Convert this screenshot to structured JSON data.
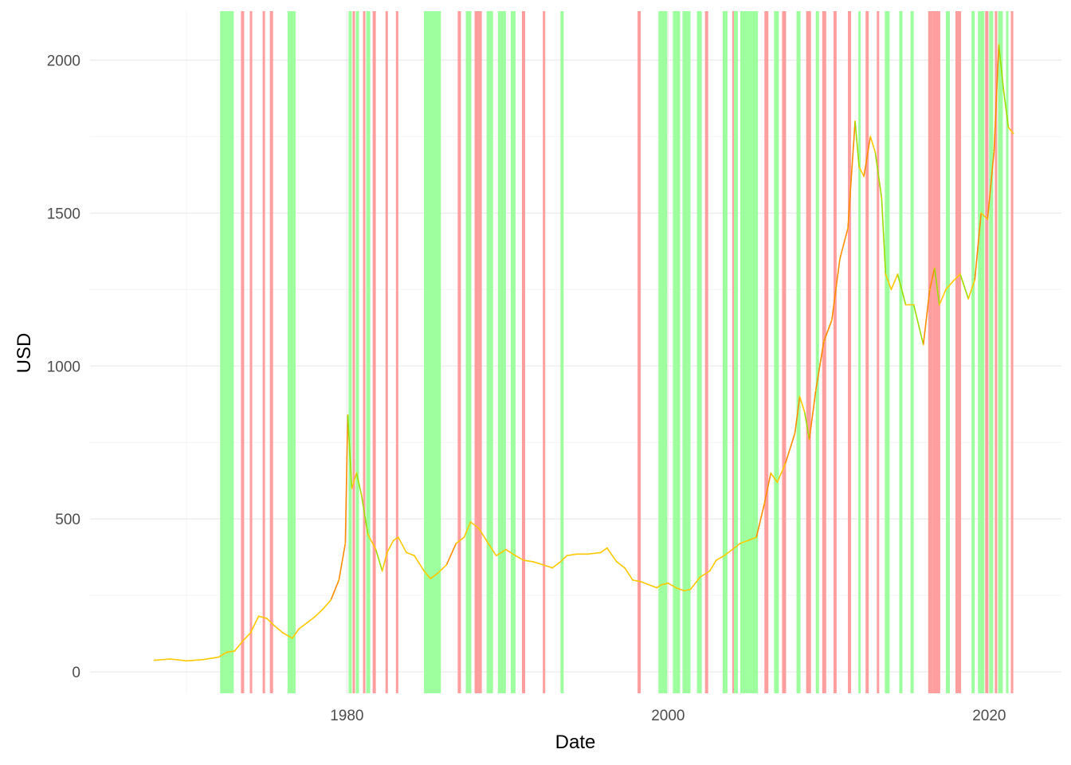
{
  "chart_data": {
    "type": "line",
    "xlabel": "Date",
    "ylabel": "USD",
    "x_ticks": [
      "1980",
      "2000",
      "2020"
    ],
    "y_ticks": [
      "0",
      "500",
      "1000",
      "1500",
      "2000"
    ],
    "xlim": [
      1964.0,
      2024.5
    ],
    "ylim": [
      -70,
      2160
    ],
    "grid": true,
    "legend": "none",
    "colors": {
      "line": "#ffc800",
      "line_falling": "#ff8c00",
      "line_rising": "#9ade00",
      "band_rising": "#99ff99",
      "band_falling": "#ff9999",
      "grid_major": "#ebebeb",
      "grid_minor": "#f4f4f4"
    },
    "series": [
      {
        "x": [
          1968.0,
          1969.0,
          1970.0,
          1971.0,
          1972.0,
          1972.5,
          1973.0,
          1973.5,
          1974.0,
          1974.5,
          1975.0,
          1975.5,
          1976.0,
          1976.6,
          1977.0,
          1977.5,
          1978.0,
          1978.5,
          1979.0,
          1979.5,
          1979.9,
          1980.05,
          1980.3,
          1980.6,
          1980.9,
          1981.3,
          1981.8,
          1982.2,
          1982.5,
          1982.9,
          1983.2,
          1983.7,
          1984.2,
          1984.8,
          1985.2,
          1985.6,
          1986.2,
          1986.8,
          1987.3,
          1987.7,
          1988.2,
          1988.8,
          1989.3,
          1989.9,
          1990.5,
          1991.0,
          1991.6,
          1992.2,
          1992.8,
          1993.3,
          1993.7,
          1994.3,
          1995.0,
          1995.8,
          1996.2,
          1996.8,
          1997.3,
          1997.8,
          1998.3,
          1998.8,
          1999.3,
          1999.6,
          2000.0,
          2000.5,
          2001.0,
          2001.4,
          2002.0,
          2002.6,
          2003.0,
          2003.5,
          2004.0,
          2004.5,
          2005.0,
          2005.5,
          2006.0,
          2006.4,
          2006.8,
          2007.3,
          2007.9,
          2008.2,
          2008.5,
          2008.8,
          2009.2,
          2009.7,
          2010.2,
          2010.7,
          2011.2,
          2011.65,
          2011.9,
          2012.2,
          2012.6,
          2012.9,
          2013.3,
          2013.55,
          2013.9,
          2014.3,
          2014.8,
          2015.3,
          2015.9,
          2016.3,
          2016.6,
          2016.9,
          2017.3,
          2017.8,
          2018.2,
          2018.7,
          2019.1,
          2019.5,
          2019.9,
          2020.3,
          2020.6,
          2020.9,
          2021.2,
          2021.5
        ],
        "values": [
          38,
          42,
          36,
          40,
          48,
          64,
          68,
          100,
          128,
          182,
          175,
          150,
          128,
          110,
          140,
          160,
          180,
          205,
          235,
          300,
          420,
          840,
          600,
          650,
          580,
          450,
          400,
          330,
          390,
          430,
          440,
          390,
          380,
          330,
          305,
          320,
          350,
          420,
          440,
          490,
          470,
          420,
          380,
          400,
          380,
          365,
          360,
          350,
          340,
          360,
          380,
          385,
          385,
          390,
          405,
          360,
          340,
          300,
          295,
          285,
          275,
          285,
          290,
          275,
          265,
          270,
          310,
          330,
          365,
          380,
          400,
          420,
          430,
          440,
          550,
          650,
          620,
          680,
          780,
          900,
          850,
          760,
          920,
          1080,
          1150,
          1350,
          1450,
          1800,
          1650,
          1620,
          1750,
          1700,
          1550,
          1300,
          1250,
          1300,
          1200,
          1200,
          1070,
          1250,
          1320,
          1200,
          1250,
          1280,
          1300,
          1220,
          1280,
          1500,
          1480,
          1700,
          2050,
          1900,
          1780,
          1760
        ]
      }
    ],
    "bands_rising": [
      [
        1972.1,
        1972.95
      ],
      [
        1976.3,
        1976.8
      ],
      [
        1980.1,
        1980.3
      ],
      [
        1980.55,
        1980.75
      ],
      [
        1981.2,
        1981.45
      ],
      [
        1984.8,
        1985.85
      ],
      [
        1987.4,
        1987.75
      ],
      [
        1988.7,
        1989.1
      ],
      [
        1989.4,
        1989.9
      ],
      [
        1990.2,
        1990.5
      ],
      [
        1993.3,
        1993.5
      ],
      [
        1999.4,
        1999.95
      ],
      [
        2000.3,
        2000.75
      ],
      [
        2000.9,
        2001.4
      ],
      [
        2001.8,
        2002.1
      ],
      [
        2003.4,
        2003.7
      ],
      [
        2004.1,
        2004.35
      ],
      [
        2004.5,
        2005.0
      ],
      [
        2005.0,
        2005.6
      ],
      [
        2006.6,
        2006.9
      ],
      [
        2008.0,
        2008.25
      ],
      [
        2009.2,
        2009.4
      ],
      [
        2011.85,
        2012.0
      ],
      [
        2013.5,
        2013.8
      ],
      [
        2014.4,
        2014.6
      ],
      [
        2015.1,
        2015.3
      ],
      [
        2017.3,
        2017.55
      ],
      [
        2018.9,
        2019.1
      ],
      [
        2019.3,
        2019.7
      ],
      [
        2020.0,
        2020.25
      ],
      [
        2020.55,
        2020.85
      ],
      [
        2021.05,
        2021.2
      ]
    ],
    "bands_falling": [
      [
        1973.4,
        1973.6
      ],
      [
        1973.95,
        1974.1
      ],
      [
        1974.75,
        1974.9
      ],
      [
        1975.2,
        1975.4
      ],
      [
        1980.35,
        1980.5
      ],
      [
        1981.0,
        1981.15
      ],
      [
        1981.6,
        1981.8
      ],
      [
        1982.4,
        1982.55
      ],
      [
        1983.05,
        1983.2
      ],
      [
        1986.9,
        1987.1
      ],
      [
        1987.95,
        1988.4
      ],
      [
        1990.9,
        1991.1
      ],
      [
        1992.2,
        1992.35
      ],
      [
        1998.1,
        1998.3
      ],
      [
        2002.3,
        2002.5
      ],
      [
        2004.0,
        2004.1
      ],
      [
        2006.0,
        2006.25
      ],
      [
        2007.1,
        2007.35
      ],
      [
        2008.6,
        2008.9
      ],
      [
        2009.6,
        2009.85
      ],
      [
        2010.3,
        2010.5
      ],
      [
        2011.2,
        2011.4
      ],
      [
        2012.3,
        2012.5
      ],
      [
        2013.0,
        2013.15
      ],
      [
        2016.2,
        2016.5
      ],
      [
        2016.5,
        2016.95
      ],
      [
        2017.9,
        2018.25
      ],
      [
        2019.75,
        2019.95
      ],
      [
        2020.35,
        2020.5
      ],
      [
        2021.35,
        2021.5
      ]
    ]
  }
}
